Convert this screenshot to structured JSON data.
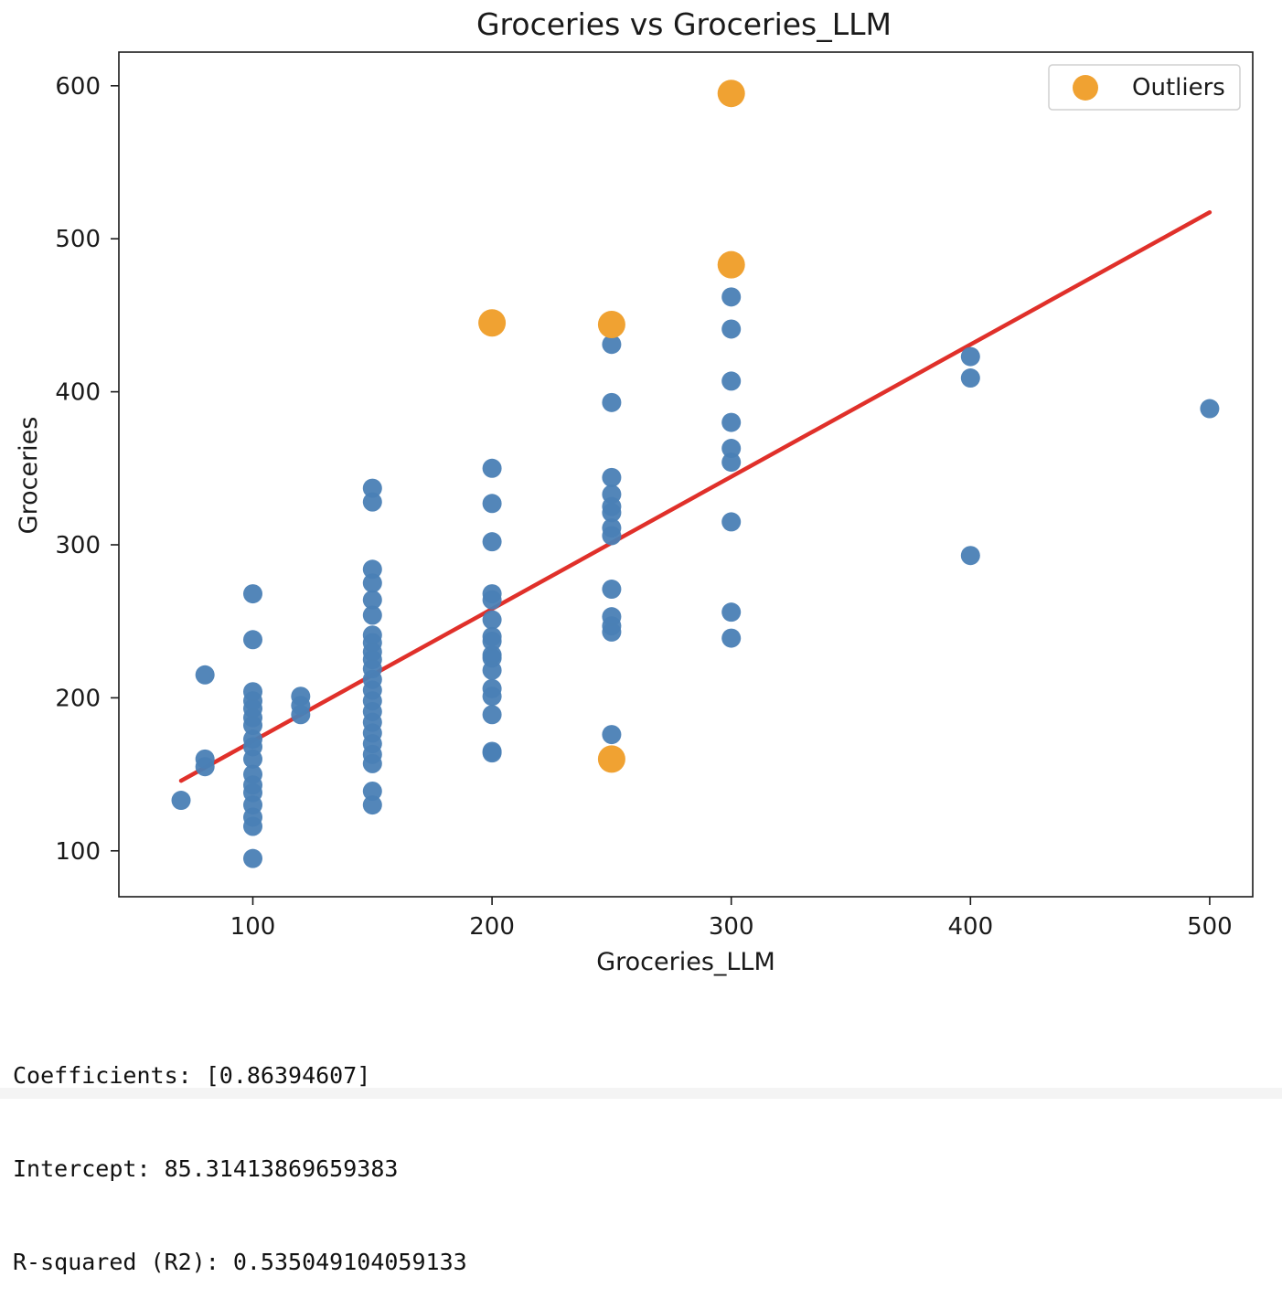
{
  "chart_data": {
    "type": "scatter",
    "title": "Groceries vs Groceries_LLM",
    "xlabel": "Groceries_LLM",
    "ylabel": "Groceries",
    "xlim": [
      44,
      518
    ],
    "ylim": [
      70,
      622
    ],
    "xticks": [
      100,
      200,
      300,
      400,
      500
    ],
    "yticks": [
      100,
      200,
      300,
      400,
      500,
      600
    ],
    "grid": false,
    "legend_position": "top-right",
    "series": [
      {
        "role": "data",
        "color": "#4a7fb5",
        "points": [
          [
            70,
            133
          ],
          [
            80,
            215
          ],
          [
            80,
            160
          ],
          [
            80,
            155
          ],
          [
            100,
            268
          ],
          [
            100,
            238
          ],
          [
            100,
            204
          ],
          [
            100,
            198
          ],
          [
            100,
            193
          ],
          [
            100,
            187
          ],
          [
            100,
            182
          ],
          [
            100,
            173
          ],
          [
            100,
            168
          ],
          [
            100,
            160
          ],
          [
            100,
            150
          ],
          [
            100,
            143
          ],
          [
            100,
            138
          ],
          [
            100,
            130
          ],
          [
            100,
            122
          ],
          [
            100,
            116
          ],
          [
            100,
            95
          ],
          [
            120,
            201
          ],
          [
            120,
            195
          ],
          [
            120,
            189
          ],
          [
            150,
            337
          ],
          [
            150,
            328
          ],
          [
            150,
            284
          ],
          [
            150,
            275
          ],
          [
            150,
            264
          ],
          [
            150,
            254
          ],
          [
            150,
            241
          ],
          [
            150,
            236
          ],
          [
            150,
            230
          ],
          [
            150,
            225
          ],
          [
            150,
            219
          ],
          [
            150,
            212
          ],
          [
            150,
            205
          ],
          [
            150,
            198
          ],
          [
            150,
            191
          ],
          [
            150,
            184
          ],
          [
            150,
            177
          ],
          [
            150,
            170
          ],
          [
            150,
            163
          ],
          [
            150,
            157
          ],
          [
            150,
            139
          ],
          [
            150,
            130
          ],
          [
            200,
            350
          ],
          [
            200,
            327
          ],
          [
            200,
            302
          ],
          [
            200,
            268
          ],
          [
            200,
            264
          ],
          [
            200,
            251
          ],
          [
            200,
            240
          ],
          [
            200,
            237
          ],
          [
            200,
            228
          ],
          [
            200,
            226
          ],
          [
            200,
            218
          ],
          [
            200,
            206
          ],
          [
            200,
            201
          ],
          [
            200,
            189
          ],
          [
            200,
            165
          ],
          [
            200,
            164
          ],
          [
            250,
            431
          ],
          [
            250,
            393
          ],
          [
            250,
            344
          ],
          [
            250,
            333
          ],
          [
            250,
            325
          ],
          [
            250,
            321
          ],
          [
            250,
            311
          ],
          [
            250,
            306
          ],
          [
            250,
            271
          ],
          [
            250,
            253
          ],
          [
            250,
            247
          ],
          [
            250,
            243
          ],
          [
            250,
            176
          ],
          [
            300,
            462
          ],
          [
            300,
            441
          ],
          [
            300,
            407
          ],
          [
            300,
            380
          ],
          [
            300,
            363
          ],
          [
            300,
            354
          ],
          [
            300,
            315
          ],
          [
            300,
            256
          ],
          [
            300,
            239
          ],
          [
            400,
            423
          ],
          [
            400,
            409
          ],
          [
            400,
            293
          ],
          [
            500,
            389
          ]
        ]
      },
      {
        "role": "outliers",
        "name": "Outliers",
        "color": "#f0a232",
        "points": [
          [
            300,
            595
          ],
          [
            300,
            483
          ],
          [
            200,
            445
          ],
          [
            250,
            444
          ],
          [
            250,
            160
          ]
        ]
      },
      {
        "role": "regression-line",
        "color": "#e0302a",
        "coefficient": 0.86394607,
        "intercept": 85.31413869659383,
        "x_range": [
          70,
          500
        ]
      }
    ]
  },
  "output": {
    "coefficients": "Coefficients: [0.86394607]",
    "intercept": "Intercept: 85.31413869659383",
    "r_squared": "R-squared (R2): 0.535049104059133"
  }
}
